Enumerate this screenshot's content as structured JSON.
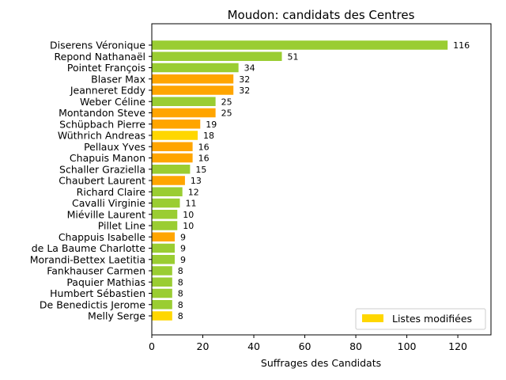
{
  "chart_data": {
    "type": "bar",
    "orientation": "horizontal",
    "title": "Moudon: candidats des Centres",
    "xlabel": "Suffrages des Candidats",
    "ylabel": "",
    "xlim": [
      0,
      133
    ],
    "xticks": [
      0,
      20,
      40,
      60,
      80,
      100,
      120
    ],
    "legend": {
      "label": "Listes modifiées",
      "color": "#ffd700",
      "placement": "lower-right"
    },
    "grid": false,
    "categories": [
      "Diserens Véronique",
      "Repond Nathanaël",
      "Pointet François",
      "Blaser Max",
      "Jeanneret Eddy",
      "Weber Céline",
      "Montandon Steve",
      "Schüpbach Pierre",
      "Wüthrich Andreas",
      "Pellaux Yves",
      "Chapuis Manon",
      "Schaller Graziella",
      "Chaubert Laurent",
      "Richard Claire",
      "Cavalli Virginie",
      "Miéville Laurent",
      "Pillet Line",
      "Chappuis Isabelle",
      "de La Baume Charlotte",
      "Morandi-Bettex Laetitia",
      "Fankhauser Carmen",
      "Paquier Mathias",
      "Humbert Sébastien",
      "De Benedictis Jerome",
      "Melly Serge"
    ],
    "values": [
      116,
      51,
      34,
      32,
      32,
      25,
      25,
      19,
      18,
      16,
      16,
      15,
      13,
      12,
      11,
      10,
      10,
      9,
      9,
      9,
      8,
      8,
      8,
      8,
      8
    ],
    "colors": [
      "#9acd32",
      "#9acd32",
      "#9acd32",
      "#ffa500",
      "#ffa500",
      "#9acd32",
      "#ffa500",
      "#ffa500",
      "#ffd700",
      "#ffa500",
      "#ffa500",
      "#9acd32",
      "#ffa500",
      "#9acd32",
      "#9acd32",
      "#9acd32",
      "#9acd32",
      "#ffa500",
      "#9acd32",
      "#9acd32",
      "#9acd32",
      "#9acd32",
      "#9acd32",
      "#9acd32",
      "#ffd700"
    ]
  }
}
